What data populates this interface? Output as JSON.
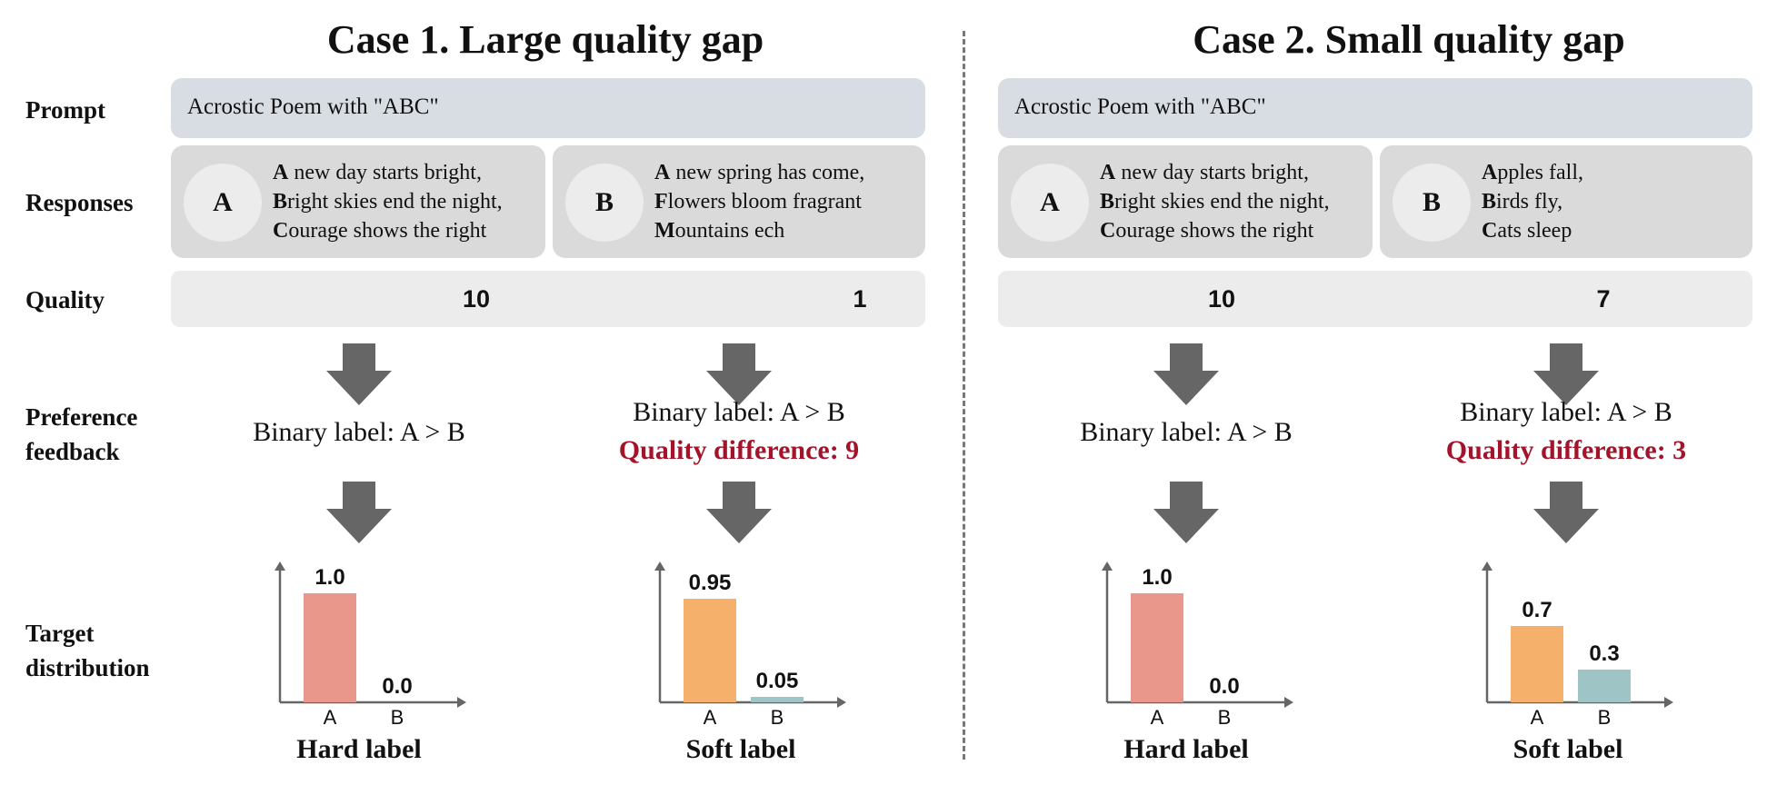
{
  "row_labels": {
    "prompt": "Prompt",
    "responses": "Responses",
    "quality": "Quality",
    "preference_1": "Preference",
    "preference_2": "feedback",
    "target_1": "Target",
    "target_2": "distribution"
  },
  "cases": [
    {
      "title": "Case 1. Large quality gap",
      "prompt": "Acrostic Poem with \"ABC\"",
      "responses": [
        {
          "id": "A",
          "lines": [
            {
              "initial": "A",
              "rest": " new day starts bright,"
            },
            {
              "initial": "B",
              "rest": "right skies end the night,"
            },
            {
              "initial": "C",
              "rest": "ourage shows the right"
            }
          ]
        },
        {
          "id": "B",
          "lines": [
            {
              "initial": "A",
              "rest": " new spring has come,"
            },
            {
              "initial": "F",
              "rest": "lowers bloom fragrant"
            },
            {
              "initial": "M",
              "rest": "ountains ech"
            }
          ]
        }
      ],
      "quality": [
        "10",
        "1"
      ],
      "hard_feedback": "Binary label: A > B",
      "soft_feedback": "Binary label: A > B",
      "soft_difference": "Quality difference: 9"
    },
    {
      "title": "Case 2. Small quality gap",
      "prompt": "Acrostic Poem with \"ABC\"",
      "responses": [
        {
          "id": "A",
          "lines": [
            {
              "initial": "A",
              "rest": " new day starts bright,"
            },
            {
              "initial": "B",
              "rest": "right skies end the night,"
            },
            {
              "initial": "C",
              "rest": "ourage shows the right"
            }
          ]
        },
        {
          "id": "B",
          "lines": [
            {
              "initial": "A",
              "rest": "pples fall,"
            },
            {
              "initial": "B",
              "rest": "irds fly,"
            },
            {
              "initial": "C",
              "rest": "ats sleep"
            }
          ]
        }
      ],
      "quality": [
        "10",
        "7"
      ],
      "hard_feedback": "Binary label: A > B",
      "soft_feedback": "Binary label: A > B",
      "soft_difference": "Quality difference: 3"
    }
  ],
  "chart_data": [
    {
      "type": "bar",
      "title": "Hard label",
      "categories": [
        "A",
        "B"
      ],
      "values": [
        1.0,
        0.0
      ],
      "value_labels": [
        "1.0",
        "0.0"
      ],
      "colors": [
        "#e8978a",
        "#e8978a"
      ],
      "ylim": [
        0,
        1
      ]
    },
    {
      "type": "bar",
      "title": "Soft label",
      "categories": [
        "A",
        "B"
      ],
      "values": [
        0.95,
        0.05
      ],
      "value_labels": [
        "0.95",
        "0.05"
      ],
      "colors": [
        "#f5b06b",
        "#9ec4c6"
      ],
      "ylim": [
        0,
        1
      ]
    },
    {
      "type": "bar",
      "title": "Hard label",
      "categories": [
        "A",
        "B"
      ],
      "values": [
        1.0,
        0.0
      ],
      "value_labels": [
        "1.0",
        "0.0"
      ],
      "colors": [
        "#e8978a",
        "#e8978a"
      ],
      "ylim": [
        0,
        1
      ]
    },
    {
      "type": "bar",
      "title": "Soft label",
      "categories": [
        "A",
        "B"
      ],
      "values": [
        0.7,
        0.3
      ],
      "value_labels": [
        "0.7",
        "0.3"
      ],
      "colors": [
        "#f5b06b",
        "#9ec4c6"
      ],
      "ylim": [
        0,
        1
      ]
    }
  ],
  "colors": {
    "red_text": "#a3142a",
    "arrow": "#666666",
    "axis": "#666666"
  }
}
